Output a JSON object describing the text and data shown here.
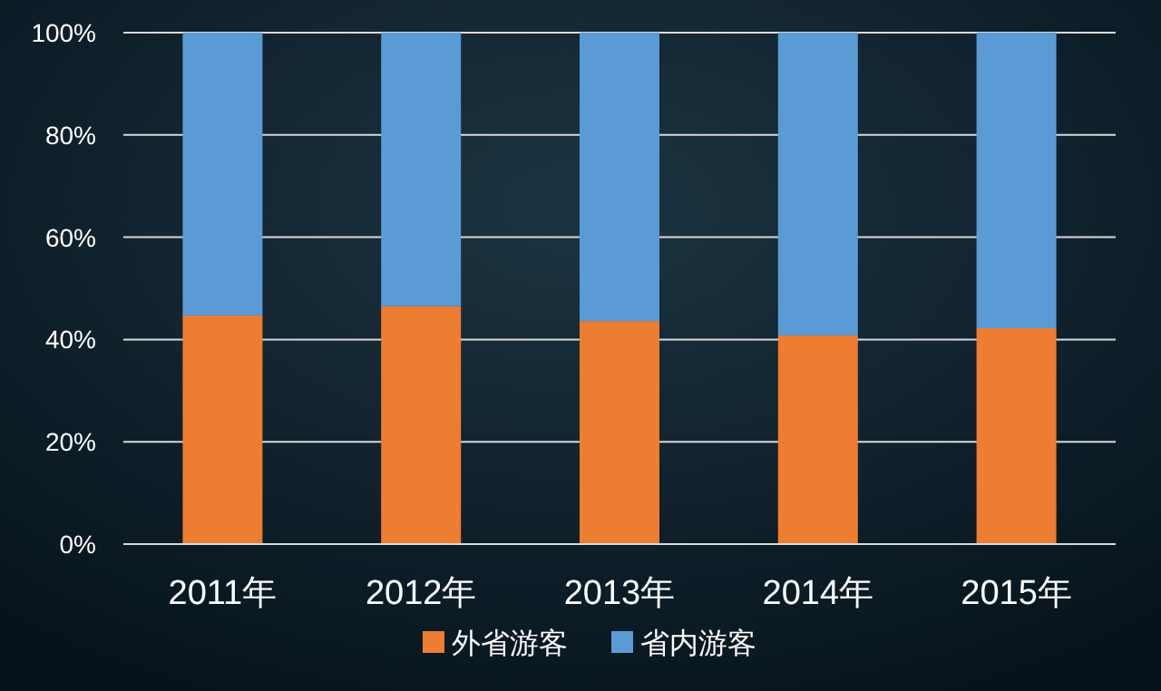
{
  "chart_data": {
    "type": "bar",
    "stacked": true,
    "categories": [
      "2011年",
      "2012年",
      "2013年",
      "2014年",
      "2015年"
    ],
    "series": [
      {
        "name": "外省游客",
        "color": "#ed7d31",
        "values": [
          44.7,
          46.5,
          43.6,
          40.8,
          42.2
        ]
      },
      {
        "name": "省内游客",
        "color": "#5b9bd5",
        "values": [
          55.3,
          53.5,
          56.4,
          59.2,
          57.8
        ]
      }
    ],
    "ylim": [
      0,
      100
    ],
    "yticks": [
      {
        "value": 0,
        "label": "0%"
      },
      {
        "value": 20,
        "label": "20%"
      },
      {
        "value": 40,
        "label": "40%"
      },
      {
        "value": 60,
        "label": "60%"
      },
      {
        "value": 80,
        "label": "80%"
      },
      {
        "value": 100,
        "label": "100%"
      }
    ],
    "grid": "y",
    "legend": "bottom"
  }
}
